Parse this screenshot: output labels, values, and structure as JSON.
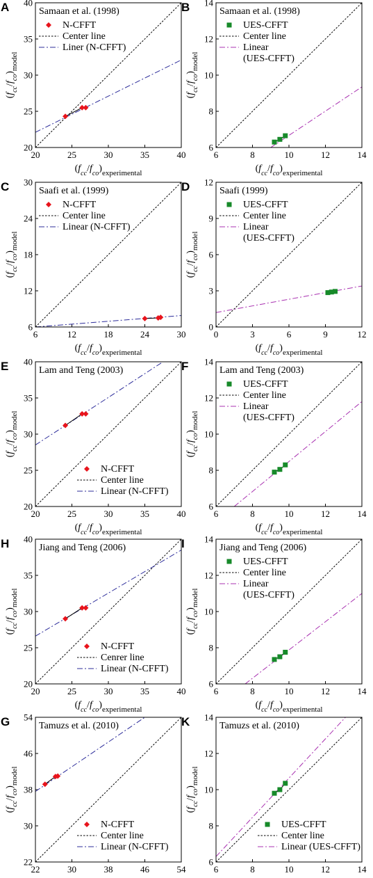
{
  "chart_data": [
    {
      "type": "scatter",
      "panel": "A",
      "title": "Samaan et al. (1998)",
      "xlim": [
        20,
        40
      ],
      "ylim": [
        20,
        40
      ],
      "xticks": [
        20,
        25,
        30,
        35,
        40
      ],
      "yticks": [
        20,
        25,
        30,
        35,
        40
      ],
      "marker": "diamond",
      "marker_color": "#e8141c",
      "fit_color": "#2c2c9a",
      "legend_pos": "top-left",
      "points": [
        [
          24.1,
          24.3
        ],
        [
          26.4,
          25.5
        ],
        [
          26.9,
          25.5
        ]
      ],
      "center_line": [
        [
          20,
          20
        ],
        [
          40,
          40
        ]
      ],
      "fit_line": [
        [
          20,
          22.1
        ],
        [
          40,
          32.1
        ]
      ],
      "legend": [
        "N-CFFT",
        "Center line",
        "Liner (N-CFFT)"
      ]
    },
    {
      "type": "scatter",
      "panel": "B",
      "title": "Samaan et al. (1998)",
      "xlim": [
        6,
        14
      ],
      "ylim": [
        6,
        14
      ],
      "xticks": [
        6,
        8,
        10,
        12,
        14
      ],
      "yticks": [
        6,
        8,
        10,
        12,
        14
      ],
      "marker": "square",
      "marker_color": "#178a2a",
      "fit_color": "#a830b0",
      "legend_pos": "top-left",
      "points": [
        [
          9.2,
          6.3
        ],
        [
          9.5,
          6.45
        ],
        [
          9.8,
          6.65
        ]
      ],
      "center_line": [
        [
          6,
          6
        ],
        [
          14,
          14
        ]
      ],
      "fit_line": [
        [
          9.0,
          6.0
        ],
        [
          14,
          9.35
        ]
      ],
      "legend": [
        "UES-CFFT",
        "Center line",
        "Linear",
        "(UES-CFFT)"
      ]
    },
    {
      "type": "scatter",
      "panel": "C",
      "title": "Saafi et al. (1999)",
      "xlim": [
        6,
        30
      ],
      "ylim": [
        6,
        30
      ],
      "xticks": [
        6,
        12,
        18,
        24,
        30
      ],
      "yticks": [
        6,
        12,
        18,
        24,
        30
      ],
      "marker": "diamond",
      "marker_color": "#e8141c",
      "fit_color": "#2c2c9a",
      "legend_pos": "top-left",
      "points": [
        [
          24.0,
          7.4
        ],
        [
          26.2,
          7.5
        ],
        [
          26.6,
          7.6
        ]
      ],
      "center_line": [
        [
          6,
          6
        ],
        [
          30,
          30
        ]
      ],
      "fit_line": [
        [
          6,
          6.0
        ],
        [
          30,
          7.9
        ]
      ],
      "legend": [
        "N-CFFT",
        "Center line",
        "Linear (N-CFFT)"
      ]
    },
    {
      "type": "scatter",
      "panel": "D",
      "title": "Saafi (1999)",
      "xlim": [
        0,
        12
      ],
      "ylim": [
        0,
        12
      ],
      "xticks": [
        0,
        3,
        6,
        9,
        12
      ],
      "yticks": [
        0,
        3,
        6,
        9,
        12
      ],
      "marker": "square",
      "marker_color": "#178a2a",
      "fit_color": "#a830b0",
      "legend_pos": "top-left",
      "points": [
        [
          9.2,
          2.85
        ],
        [
          9.5,
          2.9
        ],
        [
          9.8,
          2.95
        ]
      ],
      "center_line": [
        [
          0,
          0
        ],
        [
          12,
          12
        ]
      ],
      "fit_line": [
        [
          0,
          1.2
        ],
        [
          12,
          3.4
        ]
      ],
      "legend": [
        "UES-CFFT",
        "Center line",
        "Linear",
        "(UES-CFFT)"
      ]
    },
    {
      "type": "scatter",
      "panel": "E",
      "title": "Lam and Teng (2003)",
      "xlim": [
        20,
        40
      ],
      "ylim": [
        20,
        40
      ],
      "xticks": [
        20,
        25,
        30,
        35,
        40
      ],
      "yticks": [
        20,
        25,
        30,
        35,
        40
      ],
      "marker": "diamond",
      "marker_color": "#e8141c",
      "fit_color": "#2c2c9a",
      "legend_pos": "bottom-right",
      "points": [
        [
          24.1,
          31.2
        ],
        [
          26.4,
          32.8
        ],
        [
          26.9,
          32.8
        ]
      ],
      "center_line": [
        [
          20,
          20
        ],
        [
          40,
          40
        ]
      ],
      "fit_line": [
        [
          20,
          28.5
        ],
        [
          37.5,
          40
        ]
      ],
      "legend": [
        "N-CFFT",
        "Center line",
        "Linear (N-CFFT)"
      ]
    },
    {
      "type": "scatter",
      "panel": "F",
      "title": "Lam and Teng (2003)",
      "xlim": [
        6,
        14
      ],
      "ylim": [
        6,
        14
      ],
      "xticks": [
        6,
        8,
        10,
        12,
        14
      ],
      "yticks": [
        6,
        8,
        10,
        12,
        14
      ],
      "marker": "square",
      "marker_color": "#178a2a",
      "fit_color": "#a830b0",
      "legend_pos": "top-left",
      "points": [
        [
          9.2,
          7.9
        ],
        [
          9.5,
          8.05
        ],
        [
          9.8,
          8.3
        ]
      ],
      "center_line": [
        [
          6,
          6
        ],
        [
          14,
          14
        ]
      ],
      "fit_line": [
        [
          7.0,
          6.0
        ],
        [
          14,
          11.8
        ]
      ],
      "legend": [
        "UES-CFFT",
        "Center line",
        "Linear",
        "(UES-CFFT)"
      ]
    },
    {
      "type": "scatter",
      "panel": "H",
      "title": "Jiang and Teng (2006)",
      "xlim": [
        20,
        40
      ],
      "ylim": [
        20,
        40
      ],
      "xticks": [
        20,
        25,
        30,
        35,
        40
      ],
      "yticks": [
        20,
        25,
        30,
        35,
        40
      ],
      "marker": "diamond",
      "marker_color": "#e8141c",
      "fit_color": "#2c2c9a",
      "legend_pos": "bottom-right",
      "points": [
        [
          24.1,
          29.0
        ],
        [
          26.4,
          30.5
        ],
        [
          26.9,
          30.5
        ]
      ],
      "center_line": [
        [
          20,
          20
        ],
        [
          40,
          40
        ]
      ],
      "fit_line": [
        [
          20,
          26.6
        ],
        [
          40,
          38.5
        ]
      ],
      "legend": [
        "N-CFFT",
        "Cenrer line",
        "Linear (N-CFFT)"
      ]
    },
    {
      "type": "scatter",
      "panel": "I",
      "title": "Jiang and Teng (2006)",
      "xlim": [
        6,
        14
      ],
      "ylim": [
        6,
        14
      ],
      "xticks": [
        6,
        8,
        10,
        12,
        14
      ],
      "yticks": [
        6,
        8,
        10,
        12,
        14
      ],
      "marker": "square",
      "marker_color": "#178a2a",
      "fit_color": "#a830b0",
      "legend_pos": "top-left",
      "points": [
        [
          9.2,
          7.35
        ],
        [
          9.5,
          7.5
        ],
        [
          9.8,
          7.75
        ]
      ],
      "center_line": [
        [
          6,
          6
        ],
        [
          14,
          14
        ]
      ],
      "fit_line": [
        [
          7.6,
          6.0
        ],
        [
          14,
          11.0
        ]
      ],
      "legend": [
        "UES-CFFT",
        "Center line",
        "Linear",
        "(UES-CFFT)"
      ]
    },
    {
      "type": "scatter",
      "panel": "G",
      "title": "Tamuzs et al. (2010)",
      "xlim": [
        22,
        54
      ],
      "ylim": [
        22,
        54
      ],
      "xticks": [
        22,
        30,
        38,
        46,
        54
      ],
      "yticks": [
        22,
        30,
        38,
        46,
        54
      ],
      "marker": "diamond",
      "marker_color": "#e8141c",
      "fit_color": "#2c2c9a",
      "legend_pos": "bottom-right",
      "points": [
        [
          24.1,
          39.2
        ],
        [
          26.4,
          40.9
        ],
        [
          26.9,
          41.0
        ]
      ],
      "center_line": [
        [
          22,
          22
        ],
        [
          54,
          54
        ]
      ],
      "fit_line": [
        [
          22,
          37.6
        ],
        [
          46,
          54
        ]
      ],
      "legend": [
        "N-CFFT",
        "Center line",
        "Linear (N-CFFT)"
      ]
    },
    {
      "type": "scatter",
      "panel": "K",
      "title": "Tamuzs et al. (2010)",
      "xlim": [
        6,
        14
      ],
      "ylim": [
        6,
        14
      ],
      "xticks": [
        6,
        8,
        10,
        12,
        14
      ],
      "yticks": [
        6,
        8,
        10,
        12,
        14
      ],
      "marker": "square",
      "marker_color": "#178a2a",
      "fit_color": "#a830b0",
      "legend_pos": "bottom-right",
      "points": [
        [
          9.2,
          9.8
        ],
        [
          9.5,
          10.0
        ],
        [
          9.8,
          10.35
        ]
      ],
      "center_line": [
        [
          6,
          6
        ],
        [
          14,
          14
        ]
      ],
      "fit_line": [
        [
          6,
          6.3
        ],
        [
          13.1,
          14
        ]
      ],
      "legend": [
        "UES-CFFT",
        "Center line",
        "Linear (UES-CFFT)"
      ]
    }
  ]
}
